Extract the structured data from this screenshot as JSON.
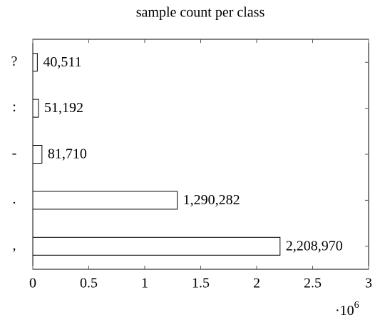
{
  "chart_data": {
    "type": "barh",
    "title": "sample count per class",
    "categories": [
      "?",
      ":",
      "-",
      ".",
      ","
    ],
    "values": [
      40511,
      51192,
      81710,
      1290282,
      2208970
    ],
    "value_labels": [
      "40,511",
      "51,192",
      "81,710",
      "1,290,282",
      "2,208,970"
    ],
    "color": "#ffffff",
    "edge_color": "#000000",
    "xlim": [
      0,
      3000000
    ],
    "xticks": [
      0,
      {
        "value": 500000,
        "label": "0.5"
      },
      {
        "value": 1000000,
        "label": "1"
      },
      {
        "value": 1500000,
        "label": "1.5"
      },
      {
        "value": 2000000,
        "label": "2"
      },
      {
        "value": 2500000,
        "label": "2.5"
      },
      {
        "value": 3000000,
        "label": "3"
      }
    ],
    "x_multiplier": {
      "base": "·10",
      "exponent": "6"
    },
    "grid": false
  }
}
